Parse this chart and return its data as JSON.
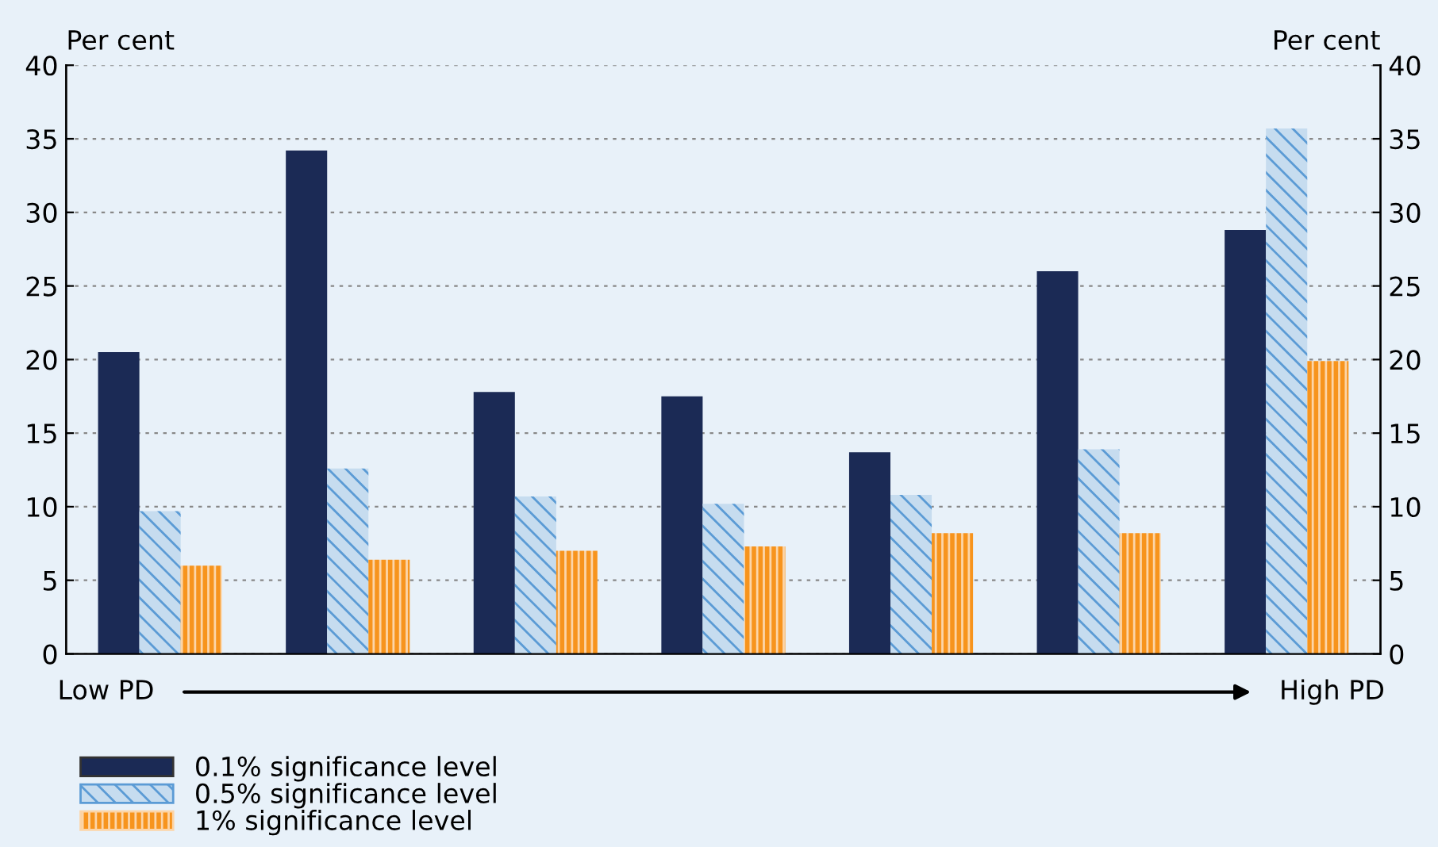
{
  "chart_data": {
    "type": "bar",
    "categories": [
      null,
      null,
      null,
      null,
      null,
      null,
      null
    ],
    "series": [
      {
        "name": "0.1% significance level",
        "color": "#1b2a55",
        "values": [
          20.5,
          34.2,
          17.8,
          17.5,
          13.7,
          26.0,
          28.8
        ]
      },
      {
        "name": "0.5% significance level",
        "color": "#c6dcef",
        "values": [
          9.7,
          12.6,
          10.7,
          10.2,
          10.8,
          13.9,
          35.7
        ]
      },
      {
        "name": "1% significance level",
        "color": "#f7941d",
        "values": [
          6.0,
          6.4,
          7.0,
          7.3,
          8.2,
          8.2,
          19.9
        ]
      }
    ],
    "ylabel": "Per cent",
    "y2label": "Per cent",
    "ylim": [
      0,
      40
    ],
    "yticks": [
      0,
      5,
      10,
      15,
      20,
      25,
      30,
      35,
      40
    ],
    "y2lim": [
      0,
      40
    ],
    "y2ticks": [
      0,
      5,
      10,
      15,
      20,
      25,
      30,
      35,
      40
    ],
    "annotations": [
      "Low PD",
      "High PD"
    ],
    "grid": "y",
    "legend": "bottom left"
  }
}
